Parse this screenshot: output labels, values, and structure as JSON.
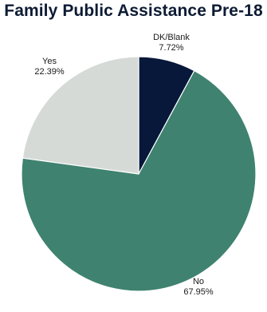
{
  "chart_data": {
    "type": "pie",
    "title": "Family Public Assistance Pre-18",
    "slices": [
      {
        "label": "DK/Blank",
        "value": 7.72,
        "value_label": "7.72%",
        "color": "#07183a"
      },
      {
        "label": "No",
        "value": 67.95,
        "value_label": "67.95%",
        "color": "#3f8270"
      },
      {
        "label": "Yes",
        "value": 22.39,
        "value_label": "22.39%",
        "color": "#d5dad6"
      }
    ],
    "start": "12 o'clock",
    "direction": "clockwise",
    "legend": "none"
  }
}
